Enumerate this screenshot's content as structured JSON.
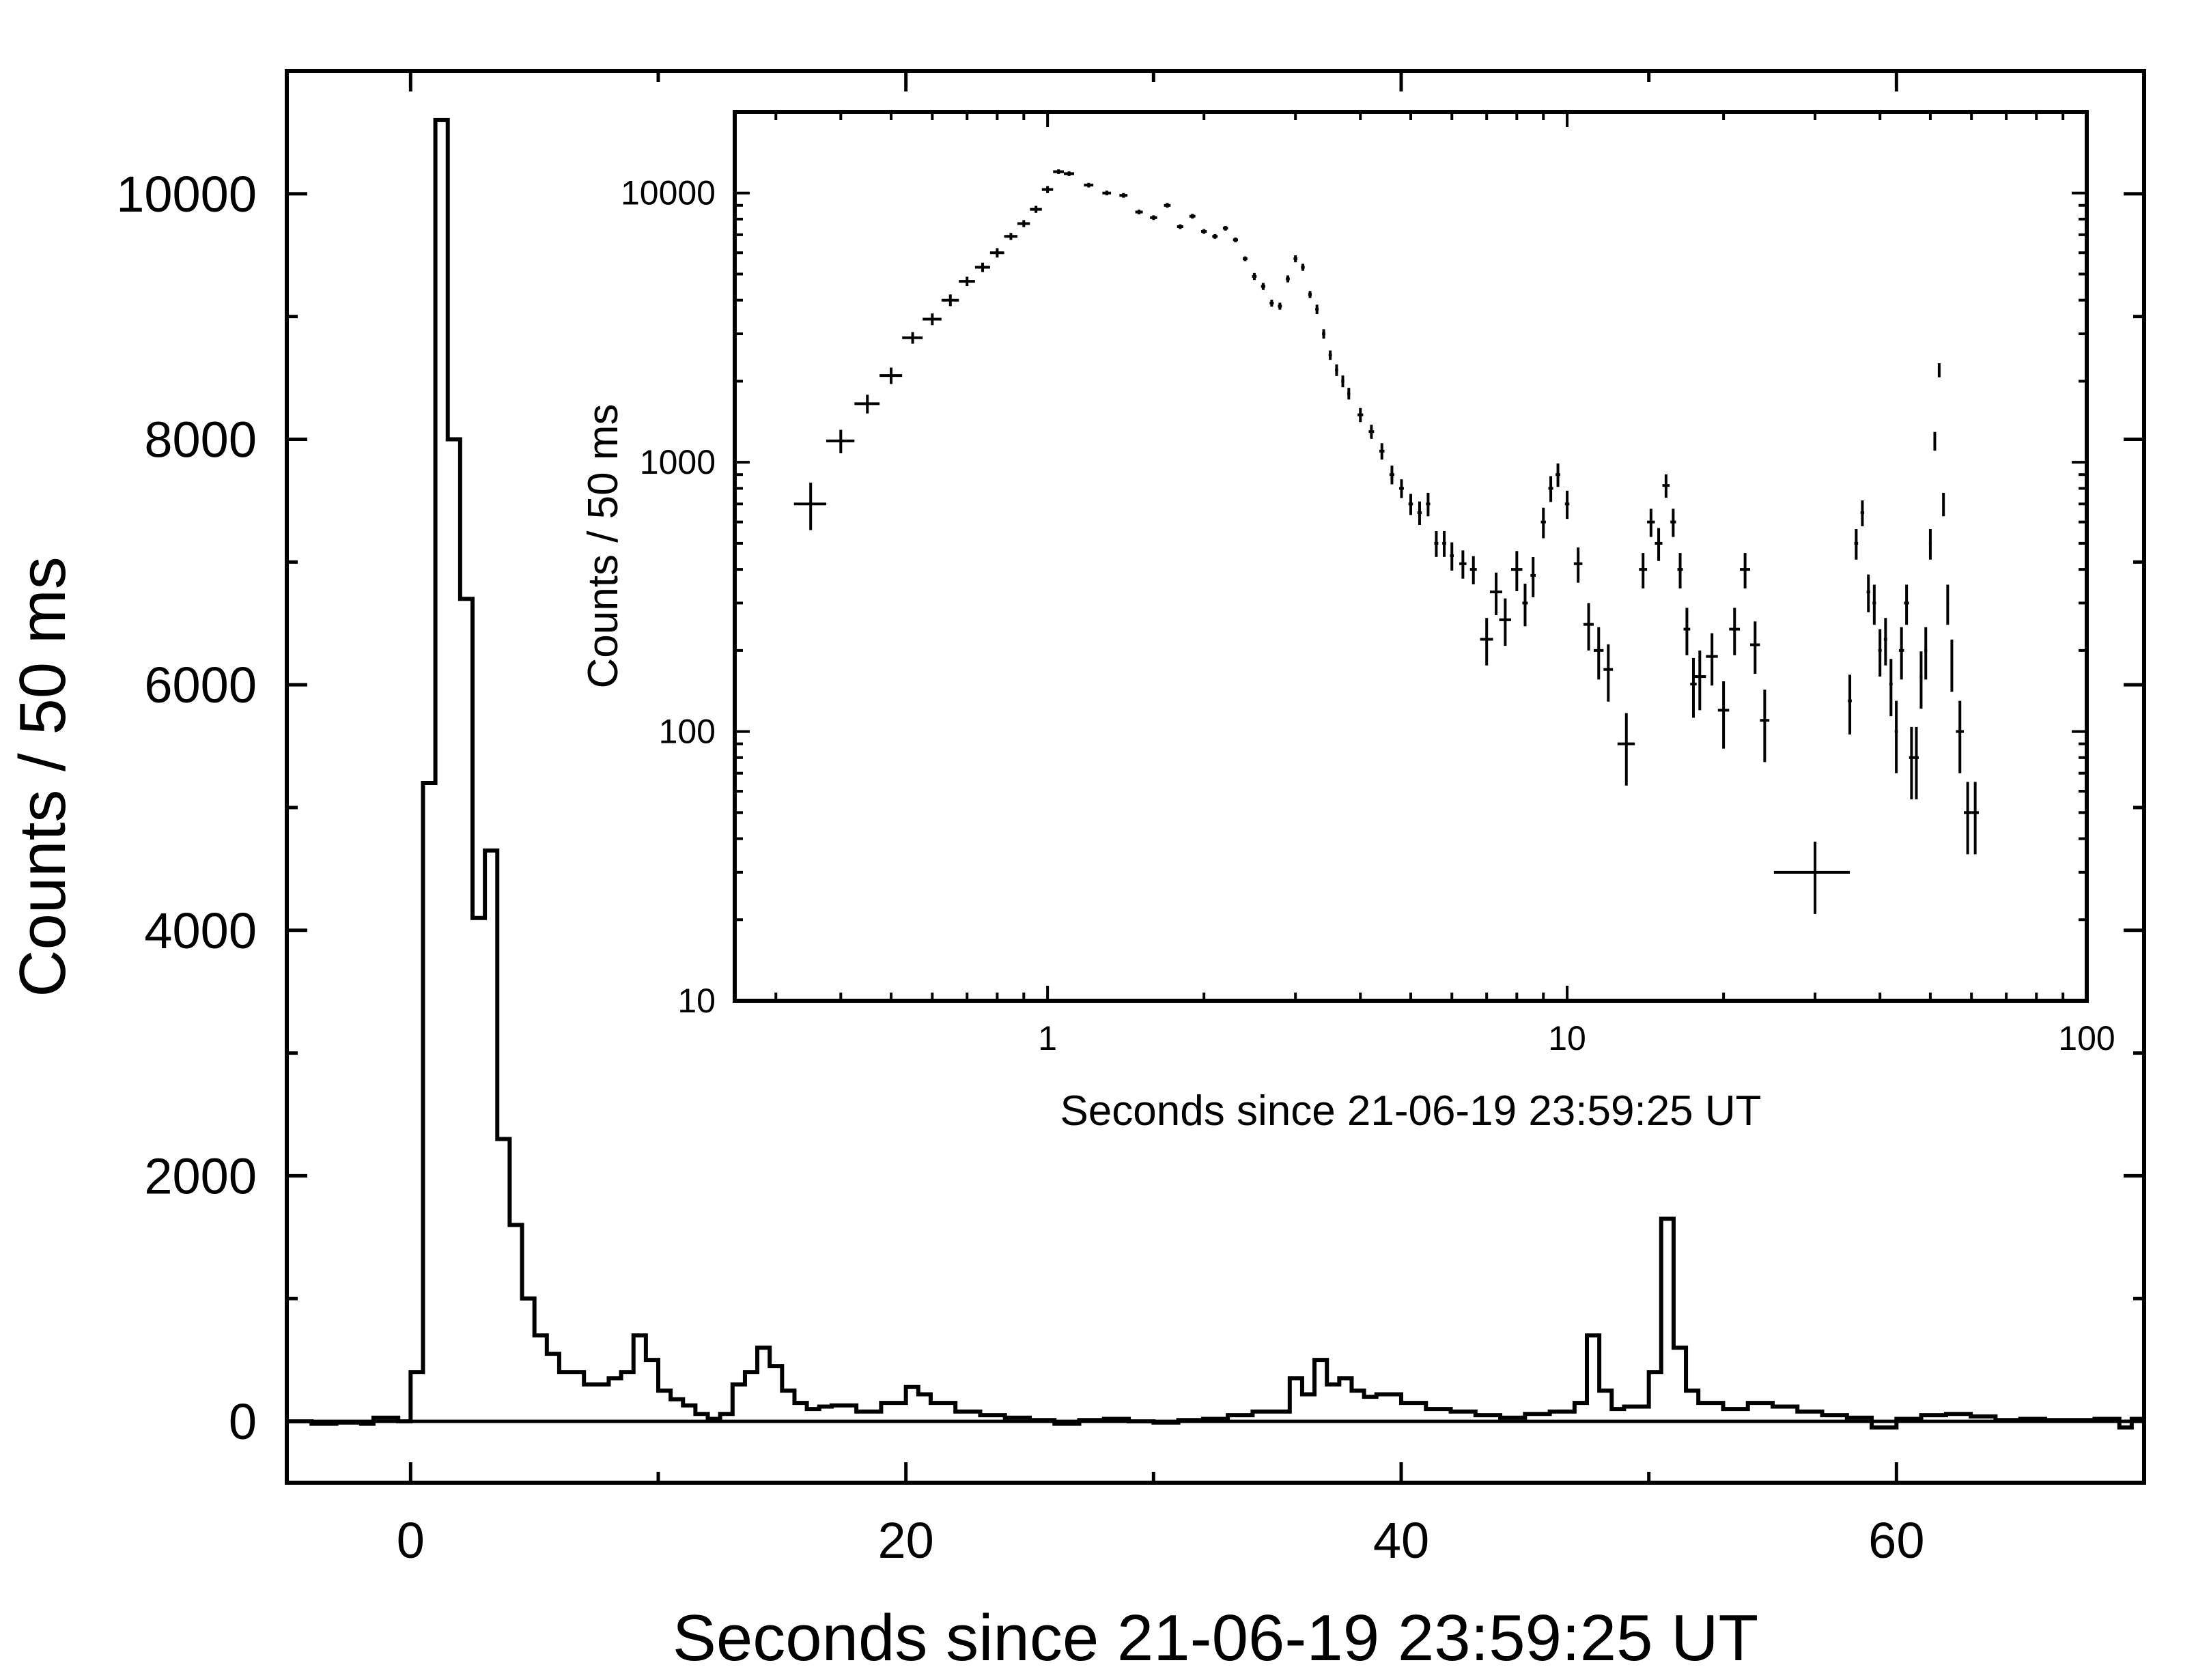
{
  "chart_data": [
    {
      "type": "line",
      "style": "histogram",
      "xlabel": "Seconds since 21-06-19 23:59:25 UT",
      "ylabel": "Counts / 50 ms",
      "xlim": [
        -5,
        70
      ],
      "ylim": [
        -500,
        11000
      ],
      "x_ticks": [
        0,
        20,
        40,
        60
      ],
      "y_ticks": [
        0,
        2000,
        4000,
        6000,
        8000,
        10000
      ],
      "x_tick_labels": [
        "0",
        "20",
        "40",
        "60"
      ],
      "y_tick_labels": [
        "0",
        "2000",
        "4000",
        "6000",
        "8000",
        "10000"
      ],
      "zero_line": true,
      "grid": false,
      "series": [
        {
          "x": [
            -5,
            -4,
            -3,
            -2,
            -1.5,
            -0.5,
            0,
            0.5,
            1,
            1.5,
            2,
            2.5,
            3,
            3.5,
            4,
            4.5,
            5,
            5.5,
            6,
            7,
            8,
            8.5,
            9,
            9.5,
            10,
            10.5,
            11,
            11.5,
            12,
            12.5,
            13,
            13.5,
            14,
            14.5,
            15,
            15.5,
            16,
            16.5,
            17,
            18,
            19,
            20,
            20.5,
            21,
            22,
            23,
            24,
            25,
            26,
            27,
            28,
            29,
            30,
            31,
            32,
            33,
            34,
            35,
            35.5,
            36,
            36.5,
            37,
            37.5,
            38,
            38.5,
            39,
            40,
            41,
            42,
            43,
            44,
            45,
            46,
            47,
            47.5,
            48,
            48.5,
            49,
            50,
            50.5,
            51,
            51.5,
            52,
            53,
            54,
            55,
            56,
            57,
            58,
            59,
            60,
            61,
            62,
            63,
            64,
            65,
            66,
            67,
            68,
            69,
            69.5,
            70
          ],
          "y": [
            0,
            -20,
            -10,
            -20,
            30,
            0,
            400,
            5200,
            10600,
            8000,
            6700,
            4100,
            4650,
            2300,
            1600,
            1000,
            700,
            550,
            400,
            300,
            350,
            400,
            700,
            500,
            250,
            180,
            130,
            60,
            20,
            60,
            300,
            400,
            600,
            450,
            250,
            150,
            100,
            120,
            130,
            80,
            150,
            280,
            220,
            150,
            80,
            50,
            30,
            10,
            -20,
            10,
            20,
            0,
            -10,
            10,
            20,
            50,
            80,
            80,
            350,
            220,
            500,
            300,
            350,
            250,
            200,
            220,
            150,
            100,
            80,
            50,
            30,
            60,
            80,
            150,
            700,
            250,
            100,
            120,
            400,
            1650,
            600,
            250,
            150,
            100,
            150,
            120,
            80,
            50,
            30,
            -50,
            20,
            50,
            60,
            40,
            10,
            20,
            10,
            10,
            20,
            -50,
            20,
            10
          ]
        }
      ]
    },
    {
      "type": "scatter",
      "style": "error-bars",
      "xlabel": "Seconds since 21-06-19 23:59:25 UT",
      "ylabel": "Counts / 50 ms",
      "x_scale": "log",
      "y_scale": "log",
      "xlim": [
        0.25,
        100
      ],
      "ylim": [
        10,
        20000
      ],
      "x_ticks": [
        1,
        10,
        100
      ],
      "y_ticks": [
        10,
        100,
        1000,
        10000
      ],
      "x_tick_labels": [
        "1",
        "10",
        "100"
      ],
      "y_tick_labels": [
        "10",
        "100",
        "1000",
        "10000"
      ],
      "grid": false,
      "series": [
        {
          "x": [
            0.35,
            0.4,
            0.45,
            0.5,
            0.55,
            0.6,
            0.65,
            0.7,
            0.75,
            0.8,
            0.85,
            0.9,
            0.95,
            1.0,
            1.05,
            1.1,
            1.2,
            1.3,
            1.4,
            1.5,
            1.6,
            1.7,
            1.8,
            1.9,
            2.0,
            2.1,
            2.2,
            2.3,
            2.4,
            2.5,
            2.6,
            2.7,
            2.8,
            2.9,
            3.0,
            3.1,
            3.2,
            3.3,
            3.4,
            3.5,
            3.6,
            3.7,
            3.8,
            4.0,
            4.2,
            4.4,
            4.6,
            4.8,
            5.0,
            5.2,
            5.4,
            5.6,
            5.8,
            6.0,
            6.3,
            6.6,
            7.0,
            7.3,
            7.6,
            8.0,
            8.3,
            8.6,
            9.0,
            9.3,
            9.6,
            10.0,
            10.5,
            11.0,
            11.5,
            12.0,
            13.0,
            14.0,
            14.5,
            15.0,
            15.5,
            16.0,
            16.5,
            17.0,
            17.5,
            18.0,
            19.0,
            20.0,
            21.0,
            22.0,
            23.0,
            24.0,
            30.0,
            35.0,
            36.0,
            37.0,
            38.0,
            39.0,
            40.0,
            41.0,
            42.0,
            43.0,
            44.0,
            45.0,
            46.0,
            47.0,
            48.0,
            49.0,
            50.0,
            51.0,
            52.0,
            53.0,
            54.0,
            55.0,
            57.0,
            59.0,
            61.0
          ],
          "y": [
            700,
            1200,
            1650,
            2100,
            2900,
            3400,
            4000,
            4700,
            5300,
            6000,
            6900,
            7700,
            8700,
            10300,
            12000,
            11800,
            10700,
            10000,
            9800,
            8500,
            8100,
            9000,
            7500,
            8200,
            7200,
            6900,
            7400,
            6700,
            5700,
            4900,
            4500,
            3900,
            3800,
            4800,
            5700,
            5300,
            4200,
            3700,
            3000,
            2500,
            2200,
            2000,
            1800,
            1500,
            1300,
            1100,
            900,
            800,
            700,
            650,
            700,
            500,
            500,
            450,
            420,
            400,
            220,
            330,
            260,
            400,
            300,
            380,
            600,
            800,
            900,
            700,
            420,
            250,
            200,
            170,
            90,
            400,
            600,
            500,
            820,
            600,
            400,
            240,
            150,
            160,
            190,
            120,
            240,
            400,
            210,
            110,
            30,
            130,
            500,
            650,
            330,
            300,
            200,
            220,
            150,
            100,
            200,
            300,
            80,
            80,
            160,
            200,
            500,
            1200,
            2200,
            700,
            300,
            180,
            100,
            50,
            50
          ],
          "x_err": [
            0.025,
            0.025,
            0.025,
            0.025,
            0.025,
            0.025,
            0.025,
            0.025,
            0.025,
            0.025,
            0.025,
            0.025,
            0.025,
            0.025,
            0.025,
            0.025,
            0.025,
            0.025,
            0.025,
            0.025,
            0.025,
            0.025,
            0.025,
            0.025,
            0.025,
            0.025,
            0.025,
            0.025,
            0.025,
            0.025,
            0.025,
            0.025,
            0.025,
            0.025,
            0.025,
            0.025,
            0.025,
            0.025,
            0.025,
            0.025,
            0.025,
            0.025,
            0.025,
            0.05,
            0.05,
            0.05,
            0.05,
            0.05,
            0.05,
            0.05,
            0.05,
            0.05,
            0.05,
            0.05,
            0.1,
            0.1,
            0.2,
            0.2,
            0.2,
            0.2,
            0.1,
            0.1,
            0.1,
            0.1,
            0.1,
            0.1,
            0.2,
            0.25,
            0.25,
            0.25,
            0.5,
            0.25,
            0.25,
            0.25,
            0.25,
            0.2,
            0.2,
            0.25,
            0.25,
            0.5,
            0.5,
            0.5,
            0.5,
            0.5,
            0.5,
            0.5,
            5.0,
            0.3,
            0.3,
            0.3,
            0.3,
            0.3,
            0.3,
            0.3,
            0.3,
            0.3,
            0.5,
            0.5,
            0.5,
            0.5,
            0.3,
            0.3,
            0.3,
            0.2,
            0.2,
            0.2,
            0.3,
            0.3,
            1.0,
            1.0,
            1.0
          ],
          "y_err_frac": [
            0.2,
            0.1,
            0.08,
            0.07,
            0.05,
            0.05,
            0.05,
            0.04,
            0.04,
            0.04,
            0.03,
            0.03,
            0.03,
            0.03,
            0.02,
            0.02,
            0.02,
            0.02,
            0.02,
            0.02,
            0.02,
            0.02,
            0.02,
            0.02,
            0.02,
            0.02,
            0.02,
            0.02,
            0.02,
            0.03,
            0.03,
            0.03,
            0.03,
            0.03,
            0.03,
            0.03,
            0.03,
            0.04,
            0.04,
            0.04,
            0.05,
            0.05,
            0.05,
            0.06,
            0.06,
            0.07,
            0.08,
            0.08,
            0.09,
            0.1,
            0.1,
            0.11,
            0.11,
            0.12,
            0.12,
            0.12,
            0.2,
            0.18,
            0.2,
            0.17,
            0.18,
            0.17,
            0.13,
            0.11,
            0.1,
            0.12,
            0.15,
            0.2,
            0.22,
            0.24,
            0.3,
            0.15,
            0.12,
            0.14,
            0.1,
            0.12,
            0.15,
            0.2,
            0.25,
            0.25,
            0.22,
            0.28,
            0.2,
            0.15,
            0.22,
            0.3,
            0.3,
            0.25,
            0.13,
            0.11,
            0.16,
            0.17,
            0.2,
            0.2,
            0.24,
            0.3,
            0.22,
            0.17,
            0.3,
            0.3,
            0.24,
            0.22,
            0.13,
            0.08,
            0.06,
            0.1,
            0.17,
            0.22,
            0.3,
            0.3,
            0.3
          ]
        }
      ]
    }
  ]
}
